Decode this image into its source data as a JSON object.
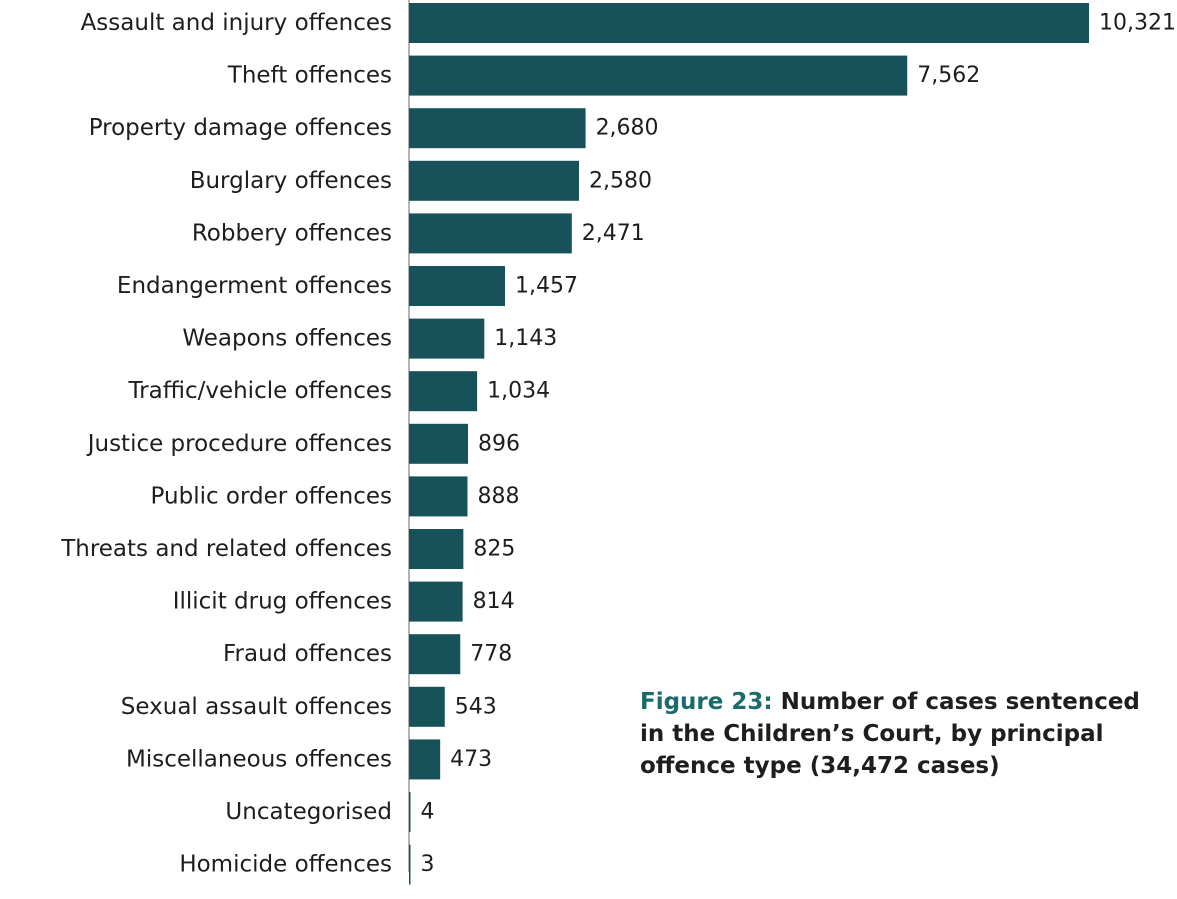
{
  "caption": {
    "figure_number": "Figure 23:",
    "text": "Number of cases sentenced in the Children’s Court, by principal offence type (34,472 cases)"
  },
  "colors": {
    "bar": "#17525a",
    "axis": "#9a9a9a",
    "figure_number": "#1a6b6b"
  },
  "chart_data": {
    "type": "bar",
    "orientation": "horizontal",
    "title": "Figure 23: Number of cases sentenced in the Children’s Court, by principal offence type (34,472 cases)",
    "categories": [
      "Assault and injury offences",
      "Theft offences",
      "Property damage offences",
      "Burglary offences",
      "Robbery offences",
      "Endangerment offences",
      "Weapons offences",
      "Traffic/vehicle offences",
      "Justice procedure offences",
      "Public order offences",
      "Threats and related offences",
      "Illicit drug offences",
      "Fraud offences",
      "Sexual assault offences",
      "Miscellaneous offences",
      "Uncategorised",
      "Homicide offences"
    ],
    "values": [
      10321,
      7562,
      2680,
      2580,
      2471,
      1457,
      1143,
      1034,
      896,
      888,
      825,
      814,
      778,
      543,
      473,
      4,
      3
    ],
    "value_labels": [
      "10,321",
      "7,562",
      "2,680",
      "2,580",
      "2,471",
      "1,457",
      "1,143",
      "1,034",
      "896",
      "888",
      "825",
      "814",
      "778",
      "543",
      "473",
      "4",
      "3"
    ],
    "xlim": [
      0,
      10321
    ],
    "grid": false,
    "legend": "none"
  }
}
